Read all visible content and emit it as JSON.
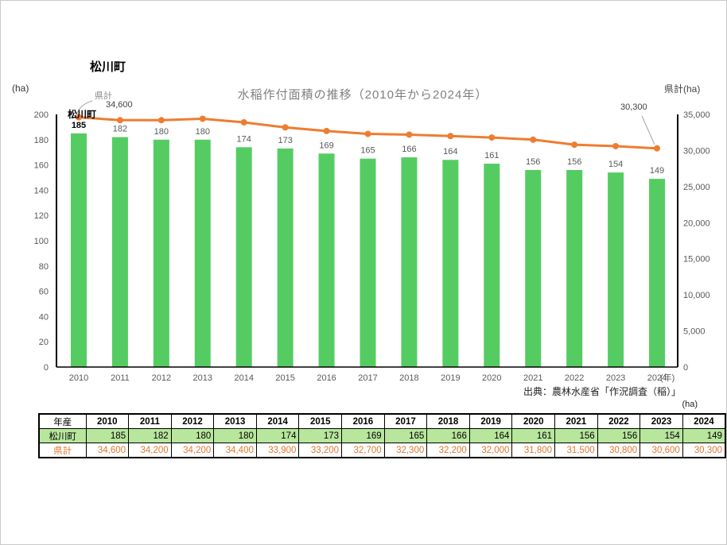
{
  "page": {
    "title": "松川町",
    "left_axis_unit": "(ha)",
    "right_axis_unit": "県計(ha)",
    "chart_title": "水稲作付面積の推移（2010年から2024年）",
    "source": "出典：農林水産省「作況調査（稲）」",
    "table_unit": "(ha)",
    "year_suffix": "(年)"
  },
  "annotations": {
    "kenkei_label": "県計",
    "kenkei_first_value": "34,600",
    "matsukawa_label": "松川町",
    "kenkei_last_value": "30,300"
  },
  "colors": {
    "bar": "#55cc62",
    "line": "#ed7d31",
    "axis": "#000000",
    "tick_text": "#595959",
    "bar_label": "#595959",
    "first_bar_label": "#000000",
    "leader": "#a6a6a6",
    "table_fill": "#b7e69c",
    "kenkei_text": "#e0762f"
  },
  "chart_data": {
    "type": "bar",
    "title": "水稲作付面積の推移（2010年から2024年）",
    "categories": [
      "2010",
      "2011",
      "2012",
      "2013",
      "2014",
      "2015",
      "2016",
      "2017",
      "2018",
      "2019",
      "2020",
      "2021",
      "2022",
      "2023",
      "2024"
    ],
    "series": [
      {
        "name": "松川町",
        "type": "bar",
        "axis": "left",
        "color": "#55cc62",
        "values": [
          185,
          182,
          180,
          180,
          174,
          173,
          169,
          165,
          166,
          164,
          161,
          156,
          156,
          154,
          149
        ]
      },
      {
        "name": "県計",
        "type": "line",
        "axis": "right",
        "color": "#ed7d31",
        "values": [
          34600,
          34200,
          34200,
          34400,
          33900,
          33200,
          32700,
          32300,
          32200,
          32000,
          31800,
          31500,
          30800,
          30600,
          30300
        ]
      }
    ],
    "left_axis": {
      "label": "(ha)",
      "min": 0,
      "max": 200,
      "step": 20
    },
    "right_axis": {
      "label": "県計(ha)",
      "min": 0,
      "max": 35000,
      "step": 5000
    },
    "xlabel": "(年)",
    "grid": false,
    "legend_position": "none"
  },
  "table": {
    "header": [
      "年産",
      "2010",
      "2011",
      "2012",
      "2013",
      "2014",
      "2015",
      "2016",
      "2017",
      "2018",
      "2019",
      "2020",
      "2021",
      "2022",
      "2023",
      "2024"
    ],
    "rows": [
      {
        "label": "松川町",
        "values": [
          "185",
          "182",
          "180",
          "180",
          "174",
          "173",
          "169",
          "165",
          "166",
          "164",
          "161",
          "156",
          "156",
          "154",
          "149"
        ]
      },
      {
        "label": "県計",
        "values": [
          "34,600",
          "34,200",
          "34,200",
          "34,400",
          "33,900",
          "33,200",
          "32,700",
          "32,300",
          "32,200",
          "32,000",
          "31,800",
          "31,500",
          "30,800",
          "30,600",
          "30,300"
        ]
      }
    ]
  }
}
